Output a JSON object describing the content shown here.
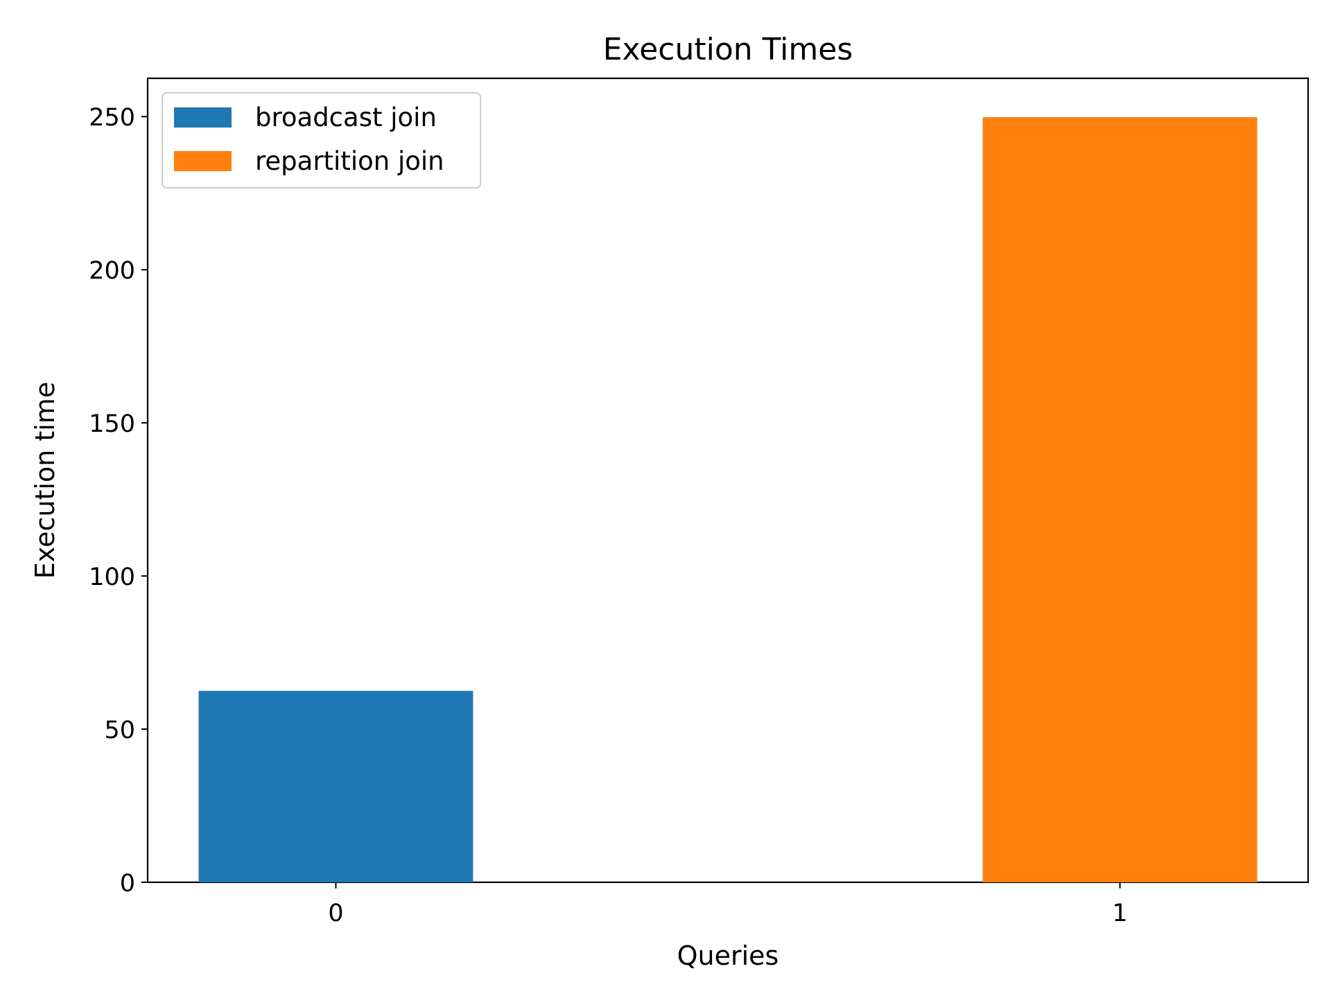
{
  "chart_data": {
    "type": "bar",
    "title": "Execution Times",
    "xlabel": "Queries",
    "ylabel": "Execution time",
    "categories": [
      "0",
      "1"
    ],
    "xlim": [
      -0.24,
      1.24
    ],
    "ylim": [
      0,
      262.5
    ],
    "yticks": [
      0,
      50,
      100,
      150,
      200,
      250
    ],
    "grid": false,
    "legend_position": "upper-left",
    "series": [
      {
        "name": "broadcast join",
        "color": "#1f77b4",
        "bars": [
          {
            "x": 0,
            "value": 62.5
          }
        ]
      },
      {
        "name": "repartition join",
        "color": "#ff7f0e",
        "bars": [
          {
            "x": 1,
            "value": 249.8
          }
        ]
      }
    ]
  }
}
